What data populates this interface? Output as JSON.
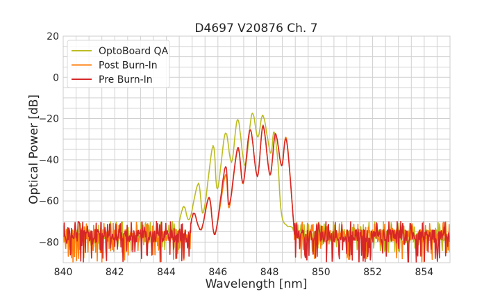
{
  "chart_data": {
    "type": "line",
    "title": "D4697 V20876 Ch. 7",
    "xlabel": "Wavelength [nm]",
    "ylabel": "Optical Power [dB]",
    "xlim": [
      840,
      855
    ],
    "ylim": [
      -90,
      20
    ],
    "xticks": [
      840,
      842,
      844,
      846,
      848,
      850,
      852,
      854
    ],
    "yticks": [
      -80,
      -60,
      -40,
      -20,
      0,
      20
    ],
    "xtick_labels": [
      "840",
      "842",
      "844",
      "846",
      "848",
      "850",
      "852",
      "854"
    ],
    "ytick_labels": [
      "−80",
      "−60",
      "−40",
      "−20",
      "0",
      "20"
    ],
    "grid": true,
    "minor_grid": true,
    "legend_position": "top-left",
    "noise_floor": {
      "OptoBoard QA": [
        -85,
        -72
      ],
      "Post Burn-In": [
        -90,
        -72
      ],
      "Pre Burn-In": [
        -90,
        -72
      ]
    },
    "series": [
      {
        "name": "OptoBoard QA",
        "color": "#bcbd22",
        "signal_range": [
          844.5,
          848.9
        ],
        "points": [
          [
            844.5,
            -70
          ],
          [
            844.68,
            -62.8
          ],
          [
            844.9,
            -68.8
          ],
          [
            845.24,
            -51.6
          ],
          [
            845.44,
            -65.5
          ],
          [
            845.81,
            -33.4
          ],
          [
            845.98,
            -54.2
          ],
          [
            846.29,
            -27.2
          ],
          [
            846.53,
            -41.2
          ],
          [
            846.77,
            -20.4
          ],
          [
            847.05,
            -42.8
          ],
          [
            847.32,
            -17.8
          ],
          [
            847.55,
            -28.9
          ],
          [
            847.75,
            -18.5
          ],
          [
            848.04,
            -36.8
          ],
          [
            848.17,
            -26.5
          ],
          [
            848.32,
            -40
          ],
          [
            848.49,
            -68
          ],
          [
            848.9,
            -73
          ]
        ]
      },
      {
        "name": "Post Burn-In",
        "color": "#ff7f0e",
        "signal_range": [
          844.95,
          848.95
        ],
        "points": [
          [
            844.95,
            -71
          ],
          [
            845.08,
            -66
          ],
          [
            845.35,
            -74
          ],
          [
            845.66,
            -59
          ],
          [
            845.89,
            -76
          ],
          [
            846.29,
            -47.5
          ],
          [
            846.44,
            -63
          ],
          [
            846.77,
            -35
          ],
          [
            846.98,
            -51.5
          ],
          [
            847.25,
            -25.5
          ],
          [
            847.53,
            -48
          ],
          [
            847.75,
            -23.8
          ],
          [
            848.02,
            -47.3
          ],
          [
            848.23,
            -27.8
          ],
          [
            848.47,
            -42.8
          ],
          [
            848.66,
            -29.8
          ],
          [
            848.95,
            -73
          ]
        ]
      },
      {
        "name": "Pre Burn-In",
        "color": "#d62728",
        "signal_range": [
          844.95,
          848.95
        ],
        "points": [
          [
            844.95,
            -71
          ],
          [
            845.08,
            -66
          ],
          [
            845.35,
            -74
          ],
          [
            845.66,
            -58.4
          ],
          [
            845.89,
            -76
          ],
          [
            846.29,
            -43.5
          ],
          [
            846.44,
            -62
          ],
          [
            846.77,
            -34.3
          ],
          [
            846.98,
            -51.2
          ],
          [
            847.25,
            -25.3
          ],
          [
            847.53,
            -48
          ],
          [
            847.75,
            -23.5
          ],
          [
            848.02,
            -47.3
          ],
          [
            848.23,
            -27.5
          ],
          [
            848.47,
            -42.8
          ],
          [
            848.66,
            -30.6
          ],
          [
            848.95,
            -73
          ]
        ]
      }
    ]
  }
}
